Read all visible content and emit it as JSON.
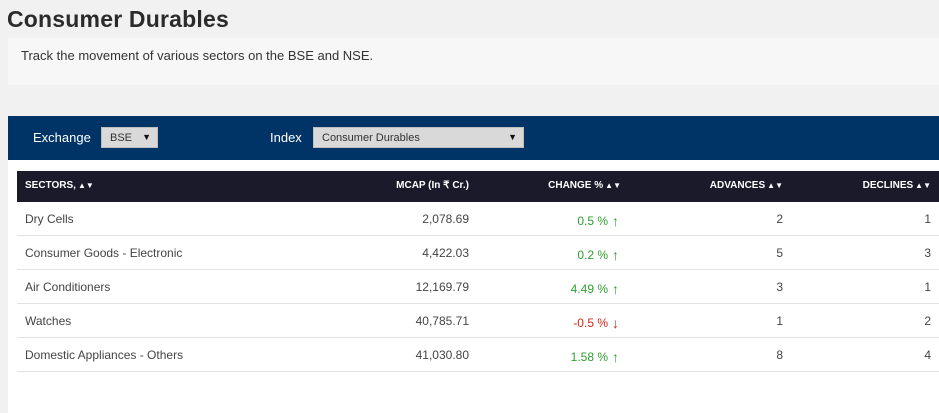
{
  "page": {
    "title": "Consumer Durables",
    "description": "Track the movement of various sectors on the BSE and NSE."
  },
  "filters": {
    "exchange_label": "Exchange",
    "exchange_value": "BSE",
    "index_label": "Index",
    "index_value": "Consumer Durables"
  },
  "table": {
    "headers": {
      "sectors": "SECTORS,",
      "mcap": "MCAP (In ₹ Cr.)",
      "change": "CHANGE %",
      "advances": "ADVANCES",
      "declines": "DECLINES"
    },
    "rows": [
      {
        "name": "Dry Cells",
        "mcap": "2,078.69",
        "change": "0.5 %",
        "direction": "up",
        "advances": "2",
        "declines": "1"
      },
      {
        "name": "Consumer Goods - Electronic",
        "mcap": "4,422.03",
        "change": "0.2 %",
        "direction": "up",
        "advances": "5",
        "declines": "3"
      },
      {
        "name": "Air Conditioners",
        "mcap": "12,169.79",
        "change": "4.49 %",
        "direction": "up",
        "advances": "3",
        "declines": "1"
      },
      {
        "name": "Watches",
        "mcap": "40,785.71",
        "change": "-0.5 %",
        "direction": "down",
        "advances": "1",
        "declines": "2"
      },
      {
        "name": "Domestic Appliances - Others",
        "mcap": "41,030.80",
        "change": "1.58 %",
        "direction": "up",
        "advances": "8",
        "declines": "4"
      }
    ]
  },
  "colors": {
    "filter_bar": "#003466",
    "table_header": "#1a1a2a",
    "up": "#2e9e2e",
    "down": "#d0271d"
  },
  "icons": {
    "sort": "sort-icon",
    "up": "arrow-up-icon",
    "down": "arrow-down-icon"
  }
}
